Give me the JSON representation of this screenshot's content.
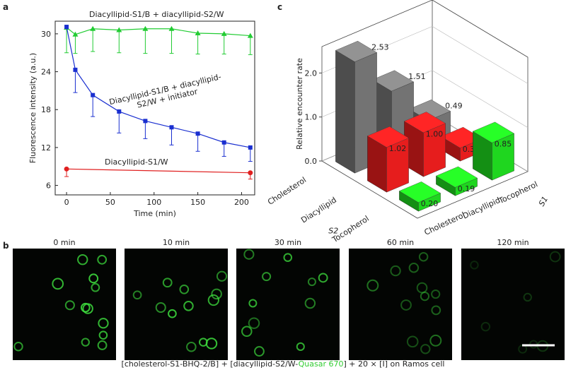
{
  "panel_labels": [
    "a",
    "b",
    "c"
  ],
  "chart_data": [
    {
      "type": "line",
      "xlabel": "Time (min)",
      "ylabel": "Fluorescence intensity (a.u.)",
      "xlim": [
        -13,
        215
      ],
      "ylim": [
        4.5,
        32
      ],
      "xticks": [
        0,
        50,
        100,
        150,
        200
      ],
      "yticks": [
        6,
        12,
        18,
        24,
        30
      ],
      "series": [
        {
          "name": "Diacyllipid-S1/B + diacyllipid-S2/W",
          "color": "#22cc33",
          "marker": "triangle",
          "x": [
            0,
            10,
            30,
            60,
            90,
            120,
            150,
            180,
            210
          ],
          "values": [
            31.0,
            29.9,
            30.8,
            30.6,
            30.8,
            30.8,
            30.1,
            30.0,
            29.7
          ],
          "errors": [
            4.0,
            3.0,
            3.6,
            3.6,
            3.9,
            3.9,
            3.3,
            3.2,
            3.0
          ]
        },
        {
          "name": "Diacyllipid-S1/B + diacyllipid-S2/W + initiator",
          "color": "#1a2fd0",
          "marker": "square",
          "x": [
            0,
            10,
            30,
            60,
            90,
            120,
            150,
            180,
            210
          ],
          "values": [
            31.1,
            24.3,
            20.3,
            17.7,
            16.2,
            15.2,
            14.2,
            12.8,
            12.0
          ],
          "errors": [
            0,
            3.6,
            3.4,
            3.4,
            2.8,
            2.8,
            2.8,
            2.2,
            2.2
          ]
        },
        {
          "name": "Diacyllipid-S1/W",
          "color": "#e02020",
          "marker": "circle",
          "x": [
            0,
            210
          ],
          "values": [
            8.6,
            8.0
          ],
          "errors": [
            1.2,
            1.0
          ]
        }
      ]
    },
    {
      "type": "bar3d",
      "zlabel": "Relative encounter rate",
      "xlabel": "S1",
      "ylabel": "S2",
      "categories": [
        "Cholesterol",
        "Diacyllipid",
        "Tocopherol"
      ],
      "zlim": [
        0,
        2.6
      ],
      "zticks": [
        {
          "value": 0,
          "label": "0.0"
        },
        {
          "value": 1,
          "label": "1.0"
        },
        {
          "value": 2,
          "label": "2.0"
        }
      ],
      "series": [
        {
          "name": "Cholesterol",
          "color": "#808080",
          "values": [
            2.53,
            1.51,
            0.49
          ],
          "value_labels": [
            "2.53",
            "1.51",
            "0.49"
          ]
        },
        {
          "name": "Diacyllipid",
          "color": "#ff2020",
          "values": [
            1.02,
            1.0,
            0.3
          ],
          "value_labels": [
            "1.02",
            "1.00",
            "0.30"
          ]
        },
        {
          "name": "Tocopherol",
          "color": "#22ee22",
          "values": [
            0.2,
            0.19,
            0.85
          ],
          "value_labels": [
            "0.20",
            "0.19",
            "0.85"
          ]
        }
      ]
    }
  ],
  "images": {
    "titles": [
      "0 min",
      "10 min",
      "30 min",
      "60 min",
      "120 min"
    ],
    "caption": {
      "before": "[cholesterol-S1-BHQ-2/B] + [diacyllipid-S2/W-",
      "highlight": "Quasar 670",
      "after": "] + 20 × [I] on Ramos cell"
    }
  }
}
